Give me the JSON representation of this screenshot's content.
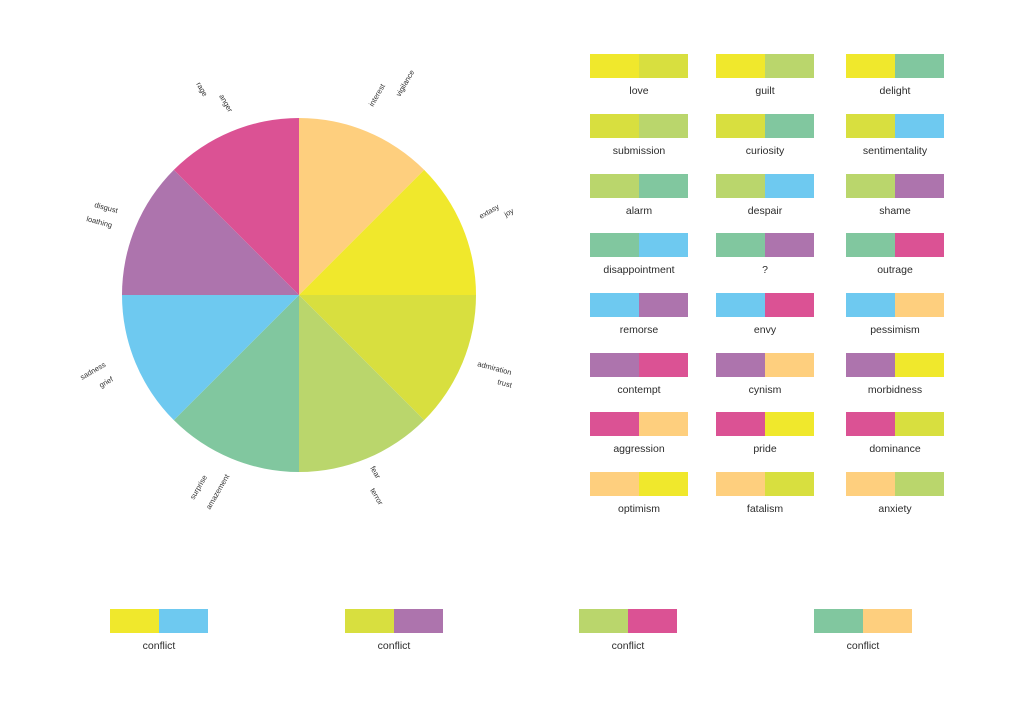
{
  "colors": {
    "rage": "#db5294",
    "interest": "#fecf7e",
    "joy": "#f0e82c",
    "admiration": "#d8df3f",
    "fear": "#bad66c",
    "surprise": "#81c79f",
    "sadness": "#6ec9f0",
    "disgust": "#ad74ad"
  },
  "wheel": {
    "segments": [
      "interest",
      "joy",
      "admiration",
      "fear",
      "surprise",
      "sadness",
      "disgust",
      "rage"
    ],
    "labels": [
      {
        "key": "interest",
        "outer": "vigilance",
        "inner": "interest"
      },
      {
        "key": "joy",
        "outer": "joy",
        "inner": "extasy"
      },
      {
        "key": "admiration",
        "outer": "trust",
        "inner": "admiration"
      },
      {
        "key": "fear",
        "outer": "terror",
        "inner": "fear"
      },
      {
        "key": "surprise",
        "outer": "amazement",
        "inner": "surprise"
      },
      {
        "key": "sadness",
        "outer": "grief",
        "inner": "sadness"
      },
      {
        "key": "disgust",
        "outer": "loathing",
        "inner": "disgust"
      },
      {
        "key": "rage",
        "outer": "anger",
        "inner": "rage"
      }
    ]
  },
  "combinations": [
    {
      "label": "love",
      "a": "joy",
      "b": "admiration"
    },
    {
      "label": "guilt",
      "a": "joy",
      "b": "fear"
    },
    {
      "label": "delight",
      "a": "joy",
      "b": "surprise"
    },
    {
      "label": "submission",
      "a": "admiration",
      "b": "fear"
    },
    {
      "label": "curiosity",
      "a": "admiration",
      "b": "surprise"
    },
    {
      "label": "sentimentality",
      "a": "admiration",
      "b": "sadness"
    },
    {
      "label": "alarm",
      "a": "fear",
      "b": "surprise"
    },
    {
      "label": "despair",
      "a": "fear",
      "b": "sadness"
    },
    {
      "label": "shame",
      "a": "fear",
      "b": "disgust"
    },
    {
      "label": "disappointment",
      "a": "surprise",
      "b": "sadness"
    },
    {
      "label": "?",
      "a": "surprise",
      "b": "disgust"
    },
    {
      "label": "outrage",
      "a": "surprise",
      "b": "rage"
    },
    {
      "label": "remorse",
      "a": "sadness",
      "b": "disgust"
    },
    {
      "label": "envy",
      "a": "sadness",
      "b": "rage"
    },
    {
      "label": "pessimism",
      "a": "sadness",
      "b": "interest"
    },
    {
      "label": "contempt",
      "a": "disgust",
      "b": "rage"
    },
    {
      "label": "cynism",
      "a": "disgust",
      "b": "interest"
    },
    {
      "label": "morbidness",
      "a": "disgust",
      "b": "joy"
    },
    {
      "label": "aggression",
      "a": "rage",
      "b": "interest"
    },
    {
      "label": "pride",
      "a": "rage",
      "b": "joy"
    },
    {
      "label": "dominance",
      "a": "rage",
      "b": "admiration"
    },
    {
      "label": "optimism",
      "a": "interest",
      "b": "joy"
    },
    {
      "label": "fatalism",
      "a": "interest",
      "b": "admiration"
    },
    {
      "label": "anxiety",
      "a": "interest",
      "b": "fear"
    }
  ],
  "conflicts": [
    {
      "label": "conflict",
      "a": "joy",
      "b": "sadness"
    },
    {
      "label": "conflict",
      "a": "admiration",
      "b": "disgust"
    },
    {
      "label": "conflict",
      "a": "fear",
      "b": "rage"
    },
    {
      "label": "conflict",
      "a": "surprise",
      "b": "interest"
    }
  ]
}
